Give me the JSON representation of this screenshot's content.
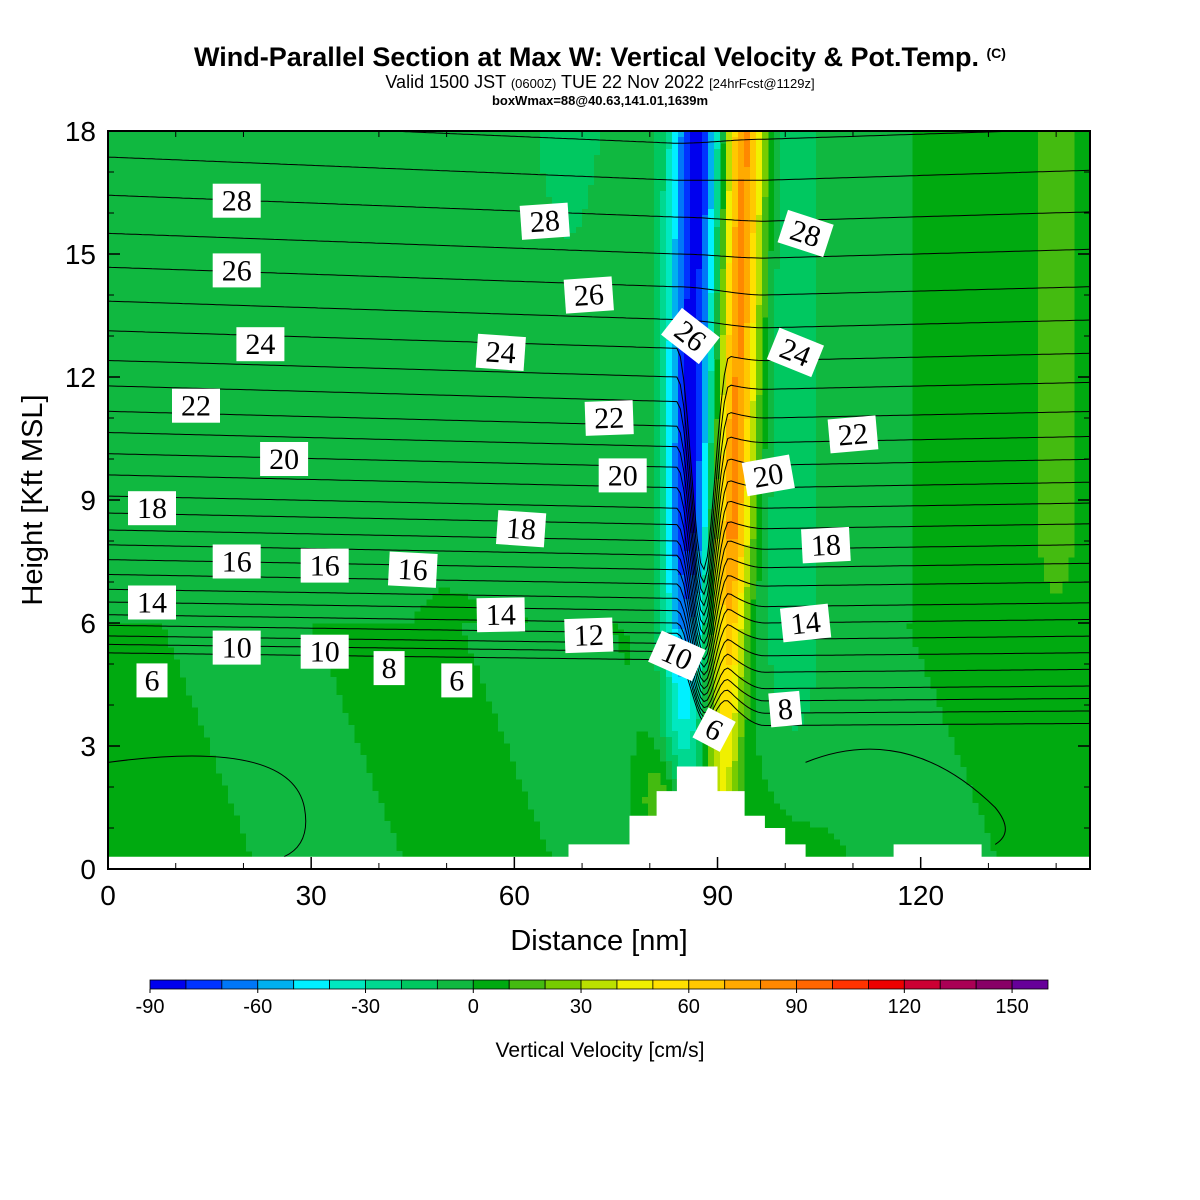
{
  "title": {
    "main": "Wind-Parallel Section at Max W: Vertical Velocity & Pot.Temp.",
    "copyright": "(C)",
    "valid_a": "Valid 1500 JST",
    "valid_utc": "(0600Z)",
    "valid_b": "TUE 22 Nov 2022",
    "fcst": "[24hrFcst@1129z]",
    "box": "boxWmax=88@40.63,141.01,1639m"
  },
  "chart_data": {
    "type": "heatmap",
    "xlabel": "Distance [nm]",
    "ylabel": "Height [Kft MSL]",
    "xlim": [
      0,
      145
    ],
    "ylim": [
      0,
      18
    ],
    "x_ticks": [
      0,
      30,
      60,
      90,
      120
    ],
    "y_ticks": [
      0,
      3,
      6,
      9,
      12,
      15,
      18
    ],
    "colorbar": {
      "title": "Vertical Velocity [cm/s]",
      "levels": [
        -90,
        -80,
        -70,
        -60,
        -50,
        -40,
        -30,
        -20,
        -10,
        0,
        10,
        20,
        30,
        40,
        50,
        60,
        70,
        80,
        90,
        100,
        110,
        120,
        130,
        140,
        150,
        160
      ],
      "tick_labels": [
        "-90",
        "-60",
        "-30",
        "0",
        "30",
        "60",
        "90",
        "120",
        "150"
      ],
      "colors": [
        "#0000ee",
        "#0033ff",
        "#0077f8",
        "#00b0f0",
        "#00f0ff",
        "#00e8c0",
        "#00d890",
        "#00c860",
        "#10b840",
        "#00aa10",
        "#44bb10",
        "#77cc00",
        "#bbe000",
        "#f0f000",
        "#ffe000",
        "#ffc800",
        "#ffaa00",
        "#ff8800",
        "#ff6600",
        "#ff3300",
        "#ee0000",
        "#cc0033",
        "#aa0055",
        "#880066",
        "#660099"
      ]
    },
    "field": {
      "background_w": 0,
      "upslope_w": 20,
      "max_w_cms": 88,
      "max_w_location": {
        "x_nm": 94,
        "height_kft": 17
      },
      "updraft_axis": [
        {
          "x": 91,
          "y": 3
        },
        {
          "x": 94,
          "y": 18
        }
      ],
      "downdraft_axis": [
        {
          "x": 85,
          "y": 3
        },
        {
          "x": 87,
          "y": 18
        }
      ]
    },
    "terrain": [
      {
        "x": 0,
        "h": 0.3
      },
      {
        "x": 68,
        "h": 0.3
      },
      {
        "x": 68,
        "h": 0.6
      },
      {
        "x": 77,
        "h": 0.6
      },
      {
        "x": 77,
        "h": 1.3
      },
      {
        "x": 81,
        "h": 1.3
      },
      {
        "x": 81,
        "h": 1.9
      },
      {
        "x": 84,
        "h": 1.9
      },
      {
        "x": 84,
        "h": 2.5
      },
      {
        "x": 90,
        "h": 2.5
      },
      {
        "x": 90,
        "h": 1.9
      },
      {
        "x": 94,
        "h": 1.9
      },
      {
        "x": 94,
        "h": 1.3
      },
      {
        "x": 97,
        "h": 1.3
      },
      {
        "x": 97,
        "h": 1.0
      },
      {
        "x": 100,
        "h": 1.0
      },
      {
        "x": 100,
        "h": 0.6
      },
      {
        "x": 103,
        "h": 0.6
      },
      {
        "x": 103,
        "h": 0.3
      },
      {
        "x": 116,
        "h": 0.3
      },
      {
        "x": 116,
        "h": 0.6
      },
      {
        "x": 129,
        "h": 0.6
      },
      {
        "x": 129,
        "h": 0.3
      },
      {
        "x": 145,
        "h": 0.3
      }
    ],
    "theta_contour_interval_c": 1,
    "contour_labels": [
      {
        "text": "28",
        "x": 19,
        "y": 16.3,
        "angle": 0
      },
      {
        "text": "28",
        "x": 64.5,
        "y": 15.8,
        "angle": -4
      },
      {
        "text": "28",
        "x": 103,
        "y": 15.5,
        "angle": 18
      },
      {
        "text": "26",
        "x": 19,
        "y": 14.6,
        "angle": 0
      },
      {
        "text": "26",
        "x": 71,
        "y": 14.0,
        "angle": -4
      },
      {
        "text": "26",
        "x": 86,
        "y": 13.0,
        "angle": 38
      },
      {
        "text": "24",
        "x": 22.5,
        "y": 12.8,
        "angle": 0
      },
      {
        "text": "24",
        "x": 58,
        "y": 12.6,
        "angle": 4
      },
      {
        "text": "24",
        "x": 101.5,
        "y": 12.6,
        "angle": 22
      },
      {
        "text": "22",
        "x": 13,
        "y": 11.3,
        "angle": 0
      },
      {
        "text": "22",
        "x": 74,
        "y": 11.0,
        "angle": -2
      },
      {
        "text": "22",
        "x": 110,
        "y": 10.6,
        "angle": -5
      },
      {
        "text": "20",
        "x": 26,
        "y": 10.0,
        "angle": 0
      },
      {
        "text": "20",
        "x": 76,
        "y": 9.6,
        "angle": 0
      },
      {
        "text": "20",
        "x": 97.5,
        "y": 9.6,
        "angle": -10
      },
      {
        "text": "18",
        "x": 6.5,
        "y": 8.8,
        "angle": 0
      },
      {
        "text": "18",
        "x": 61,
        "y": 8.3,
        "angle": 4
      },
      {
        "text": "18",
        "x": 106,
        "y": 7.9,
        "angle": -3
      },
      {
        "text": "16",
        "x": 19,
        "y": 7.5,
        "angle": 0
      },
      {
        "text": "16",
        "x": 32,
        "y": 7.4,
        "angle": 0
      },
      {
        "text": "16",
        "x": 45,
        "y": 7.3,
        "angle": 3
      },
      {
        "text": "14",
        "x": 6.5,
        "y": 6.5,
        "angle": 0
      },
      {
        "text": "14",
        "x": 58,
        "y": 6.2,
        "angle": -1
      },
      {
        "text": "14",
        "x": 103,
        "y": 6.0,
        "angle": -6
      },
      {
        "text": "12",
        "x": 71,
        "y": 5.7,
        "angle": -2
      },
      {
        "text": "10",
        "x": 19,
        "y": 5.4,
        "angle": 0
      },
      {
        "text": "10",
        "x": 32,
        "y": 5.3,
        "angle": 0
      },
      {
        "text": "10",
        "x": 84,
        "y": 5.2,
        "angle": 24
      },
      {
        "text": "8",
        "x": 41.5,
        "y": 4.9,
        "angle": 0
      },
      {
        "text": "8",
        "x": 100,
        "y": 3.9,
        "angle": -5
      },
      {
        "text": "6",
        "x": 6.5,
        "y": 4.6,
        "angle": 0
      },
      {
        "text": "6",
        "x": 51.5,
        "y": 4.6,
        "angle": 0
      },
      {
        "text": "6",
        "x": 89.5,
        "y": 3.4,
        "angle": 28
      }
    ],
    "theta_contours": [
      {
        "level": 6,
        "left": 5.1,
        "right": 3.5
      },
      {
        "level": 7,
        "left": 5.3,
        "right": 3.8
      },
      {
        "level": 8,
        "left": 5.5,
        "right": 4.1
      },
      {
        "level": 9,
        "left": 5.75,
        "right": 4.4
      },
      {
        "level": 10,
        "left": 6.0,
        "right": 4.8
      },
      {
        "level": 11,
        "left": 6.3,
        "right": 5.2
      },
      {
        "level": 12,
        "left": 6.6,
        "right": 5.6
      },
      {
        "level": 13,
        "left": 6.95,
        "right": 6.0
      },
      {
        "level": 14,
        "left": 7.3,
        "right": 6.4
      },
      {
        "level": 15,
        "left": 7.65,
        "right": 6.9
      },
      {
        "level": 16,
        "left": 8.0,
        "right": 7.35
      },
      {
        "level": 17,
        "left": 8.4,
        "right": 7.8
      },
      {
        "level": 18,
        "left": 8.8,
        "right": 8.3
      },
      {
        "level": 19,
        "left": 9.3,
        "right": 8.8
      },
      {
        "level": 20,
        "left": 9.8,
        "right": 9.3
      },
      {
        "level": 21,
        "left": 10.3,
        "right": 9.85
      },
      {
        "level": 22,
        "left": 10.8,
        "right": 10.4
      },
      {
        "level": 23,
        "left": 11.4,
        "right": 11.0
      },
      {
        "level": 24,
        "left": 12.0,
        "right": 11.7
      },
      {
        "level": 25,
        "left": 12.7,
        "right": 12.4
      },
      {
        "level": 26,
        "left": 13.4,
        "right": 13.2
      },
      {
        "level": 27,
        "left": 14.2,
        "right": 14.0
      },
      {
        "level": 28,
        "left": 15.0,
        "right": 14.9
      },
      {
        "level": 29,
        "left": 15.9,
        "right": 15.8
      },
      {
        "level": 30,
        "left": 16.8,
        "right": 16.8
      },
      {
        "level": 31,
        "left": 17.7,
        "right": 17.8
      }
    ]
  }
}
